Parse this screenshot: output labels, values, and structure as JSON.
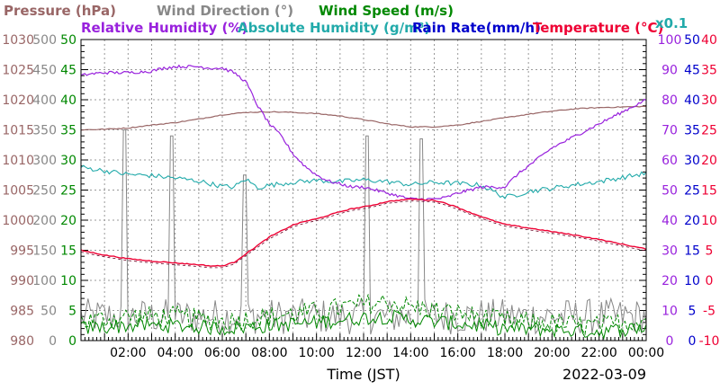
{
  "chart_data": {
    "type": "line",
    "date": "2022-03-09",
    "xlabel": "Time (JST)",
    "xrange_hours": [
      0,
      24
    ],
    "x_ticks": [
      {
        "h": 2,
        "label": "02:00"
      },
      {
        "h": 4,
        "label": "04:00"
      },
      {
        "h": 6,
        "label": "06:00"
      },
      {
        "h": 8,
        "label": "08:00"
      },
      {
        "h": 10,
        "label": "10:00"
      },
      {
        "h": 12,
        "label": "12:00"
      },
      {
        "h": 14,
        "label": "14:00"
      },
      {
        "h": 16,
        "label": "16:00"
      },
      {
        "h": 18,
        "label": "18:00"
      },
      {
        "h": 20,
        "label": "20:00"
      },
      {
        "h": 22,
        "label": "22:00"
      },
      {
        "h": 24,
        "label": "00:00"
      }
    ],
    "grid": true,
    "titles": {
      "pressure": "Pressure (hPa)",
      "wind_direction": "Wind Direction (°)",
      "wind_speed": "Wind Speed (m/s)",
      "humidity": "Relative Humidity (%)",
      "abs_humidity": "Absolute Humidity (g/m³)",
      "rain": "Rain Rate(mm/h)",
      "temperature": "Temperature (°C)",
      "rain_scale": "x0.1"
    },
    "colors": {
      "pressure": "#996666",
      "wind_direction": "#888888",
      "wind_speed": "#008800",
      "humidity": "#9922dd",
      "abs_humidity": "#22aaaa",
      "rain": "#0000cc",
      "temperature": "#ee0033"
    },
    "axes": {
      "pressure": {
        "range": [
          980,
          1030
        ],
        "ticks": [
          "980",
          "985",
          "990",
          "995",
          "1000",
          "1005",
          "1010",
          "1015",
          "1020",
          "1025",
          "1030"
        ]
      },
      "wind_direction": {
        "range": [
          0,
          500
        ],
        "ticks": [
          "0",
          "50",
          "100",
          "150",
          "200",
          "250",
          "300",
          "350",
          "400",
          "450",
          "500"
        ]
      },
      "wind_speed": {
        "range": [
          0,
          50
        ],
        "ticks": [
          "0",
          "5",
          "10",
          "15",
          "20",
          "25",
          "30",
          "35",
          "40",
          "45",
          "50"
        ]
      },
      "humidity": {
        "range": [
          0,
          100
        ],
        "ticks": [
          "0",
          "10",
          "20",
          "30",
          "40",
          "50",
          "60",
          "70",
          "80",
          "90",
          "100"
        ]
      },
      "rain": {
        "range": [
          0,
          50
        ],
        "ticks": [
          "0",
          "5",
          "10",
          "15",
          "20",
          "25",
          "30",
          "35",
          "40",
          "45",
          "50"
        ]
      },
      "temperature": {
        "range": [
          -10,
          40
        ],
        "ticks": [
          "-10",
          "-5",
          "0",
          "5",
          "10",
          "15",
          "20",
          "25",
          "30",
          "35",
          "40"
        ]
      }
    },
    "series": [
      {
        "name": "Pressure (hPa)",
        "key": "pressure",
        "axis": "pressure",
        "x": [
          0,
          1,
          2,
          3,
          4,
          5,
          6,
          7,
          8,
          9,
          10,
          11,
          12,
          13,
          14,
          15,
          16,
          17,
          18,
          19,
          20,
          21,
          22,
          23,
          24
        ],
        "y": [
          1015.0,
          1015.1,
          1015.3,
          1015.8,
          1016.2,
          1016.8,
          1017.5,
          1017.9,
          1018.0,
          1017.9,
          1017.7,
          1017.3,
          1016.7,
          1016.0,
          1015.5,
          1015.5,
          1015.8,
          1016.4,
          1017.0,
          1017.6,
          1018.1,
          1018.5,
          1018.7,
          1018.8,
          1018.9
        ]
      },
      {
        "name": "Relative Humidity (%)",
        "key": "humidity",
        "axis": "humidity",
        "x": [
          0,
          0.3,
          1,
          2,
          3,
          3.5,
          4,
          5,
          5.5,
          6,
          6.5,
          7,
          7.5,
          8,
          8.5,
          9,
          9.5,
          10,
          10.5,
          11,
          11.5,
          12,
          12.5,
          13,
          13.5,
          14,
          14.5,
          15,
          15.5,
          16,
          16.5,
          17,
          17.5,
          18,
          18.5,
          19,
          19.5,
          20,
          21,
          22,
          23,
          24
        ],
        "y": [
          88,
          88.5,
          89,
          89,
          89.5,
          90.5,
          91,
          91,
          90.5,
          90.5,
          89,
          86,
          78,
          72,
          68,
          62,
          58,
          55,
          53,
          52,
          51,
          51,
          50,
          49,
          48,
          47,
          47,
          47,
          47.5,
          49,
          50,
          51,
          51,
          51,
          55,
          58,
          61,
          64,
          68,
          72,
          76,
          80
        ]
      },
      {
        "name": "Absolute Humidity (g/m³)",
        "key": "abs_humidity",
        "axis": "wind_speed",
        "x": [
          0,
          1,
          2,
          3,
          4,
          5,
          6,
          6.5,
          7,
          7.5,
          8,
          9,
          10,
          11,
          12,
          13,
          14,
          15,
          16,
          17,
          17.5,
          18,
          18.5,
          19,
          20,
          21,
          22,
          23,
          24
        ],
        "y": [
          28.8,
          28.2,
          27.6,
          27.4,
          27.0,
          26.5,
          25.6,
          25.5,
          26.8,
          25.4,
          25.8,
          26.3,
          26.6,
          26.4,
          26.7,
          26.4,
          25.9,
          26.3,
          26.1,
          25.8,
          24.8,
          23.8,
          24.2,
          24.8,
          25.3,
          25.9,
          26.4,
          27.1,
          27.8
        ]
      },
      {
        "name": "Temperature (°C)",
        "key": "temperature",
        "axis": "temperature",
        "x": [
          0,
          1,
          2,
          3,
          4,
          5,
          5.5,
          6,
          6.5,
          7,
          7.5,
          8,
          8.5,
          9,
          9.5,
          10,
          10.5,
          11,
          11.5,
          12,
          12.5,
          13,
          13.5,
          14,
          14.5,
          15,
          15.5,
          16,
          16.5,
          17,
          17.5,
          18,
          19,
          20,
          21,
          22,
          23,
          24
        ],
        "y": [
          5.0,
          4.2,
          3.6,
          3.2,
          2.9,
          2.6,
          2.4,
          2.4,
          3.0,
          4.4,
          5.8,
          7.2,
          8.2,
          9.2,
          9.8,
          10.2,
          10.8,
          11.4,
          11.9,
          12.2,
          12.6,
          13.1,
          13.3,
          13.5,
          13.4,
          13.3,
          12.8,
          12.1,
          11.3,
          10.6,
          9.9,
          9.3,
          8.7,
          8.1,
          7.5,
          6.8,
          6.0,
          5.2
        ]
      },
      {
        "name": "Wind Direction (°)",
        "key": "wind_direction",
        "axis": "wind_direction",
        "note": "generated from seeded noise around baseline with spikes",
        "baseline": 40,
        "spikes": [
          {
            "h": 1.85,
            "v": 350
          },
          {
            "h": 3.85,
            "v": 340
          },
          {
            "h": 6.95,
            "v": 275
          },
          {
            "h": 12.15,
            "v": 340
          },
          {
            "h": 14.45,
            "v": 335
          }
        ]
      },
      {
        "name": "Wind Speed (m/s)",
        "key": "wind_speed",
        "axis": "wind_speed",
        "x": [
          0,
          2,
          4,
          6,
          8,
          10,
          12,
          13,
          14,
          16,
          18,
          20,
          22,
          24
        ],
        "y": [
          2.0,
          2.5,
          2.5,
          2.0,
          2.5,
          3.0,
          3.8,
          4.0,
          3.5,
          2.8,
          2.0,
          1.8,
          1.5,
          2.2
        ]
      }
    ],
    "rain_values": []
  }
}
